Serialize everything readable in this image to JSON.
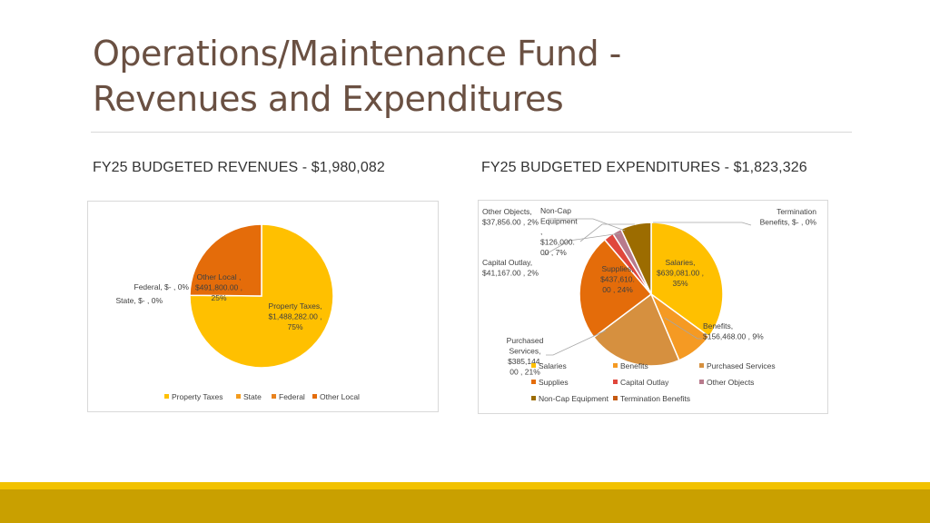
{
  "slide": {
    "title_line1": "Operations/Maintenance Fund -",
    "title_line2": "Revenues and Expenditures",
    "subtitle_revenues": "FY25 BUDGETED REVENUES - $1,980,082",
    "subtitle_expenditures": "FY25 BUDGETED EXPENDITURES - $1,823,326"
  },
  "chart_data": [
    {
      "type": "pie",
      "title": "",
      "legend_position": "bottom",
      "slices": [
        {
          "name": "Property Taxes",
          "value": 1488282.0,
          "percent": 75,
          "color": "#ffc000",
          "label_lines": [
            "Property Taxes,",
            "$1,488,282.00 ,",
            "75%"
          ]
        },
        {
          "name": "State",
          "value": 0,
          "percent": 0,
          "color": "#f39c1f",
          "label_lines": [
            "State,  $-   , 0%"
          ]
        },
        {
          "name": "Federal",
          "value": 0,
          "percent": 0,
          "color": "#e8821e",
          "label_lines": [
            "Federal,  $-   , 0%"
          ]
        },
        {
          "name": "Other Local",
          "value": 491800.0,
          "percent": 25,
          "color": "#e46c0a",
          "label_lines": [
            "Other Local ,",
            "$491,800.00 ,",
            "25%"
          ]
        }
      ]
    },
    {
      "type": "pie",
      "title": "",
      "legend_position": "bottom",
      "slices": [
        {
          "name": "Salaries",
          "value": 639081.0,
          "percent": 35,
          "color": "#ffc000",
          "label_lines": [
            "Salaries,",
            "$639,081.00 ,",
            "35%"
          ]
        },
        {
          "name": "Benefits",
          "value": 156468.0,
          "percent": 9,
          "color": "#f59a23",
          "label_lines": [
            "Benefits,",
            "$156,468.00 , 9%"
          ]
        },
        {
          "name": "Purchased Services",
          "value": 385144.0,
          "percent": 21,
          "color": "#d6903f",
          "label_lines": [
            "Purchased",
            "Services,",
            "$385,144.",
            "00 , 21%"
          ]
        },
        {
          "name": "Supplies",
          "value": 437610.0,
          "percent": 24,
          "color": "#e46c0a",
          "label_lines": [
            "Supplies,",
            "$437,610.",
            "00 , 24%"
          ]
        },
        {
          "name": "Capital Outlay",
          "value": 41167.0,
          "percent": 2,
          "color": "#e0473c",
          "label_lines": [
            "Capital Outlay,",
            "$41,167.00 , 2%"
          ]
        },
        {
          "name": "Other Objects",
          "value": 37856.0,
          "percent": 2,
          "color": "#b87a8c",
          "label_lines": [
            "Other Objects,",
            "$37,856.00 , 2%"
          ]
        },
        {
          "name": "Non-Cap Equipment",
          "value": 126000.0,
          "percent": 7,
          "color": "#9c6c00",
          "label_lines": [
            "Non-Cap",
            "Equipment",
            ",",
            "$126,000.",
            "00 , 7%"
          ]
        },
        {
          "name": "Termination Benefits",
          "value": 0,
          "percent": 0,
          "color": "#c55a11",
          "label_lines": [
            "Termination",
            "Benefits,  $-   , 0%"
          ]
        }
      ]
    }
  ]
}
